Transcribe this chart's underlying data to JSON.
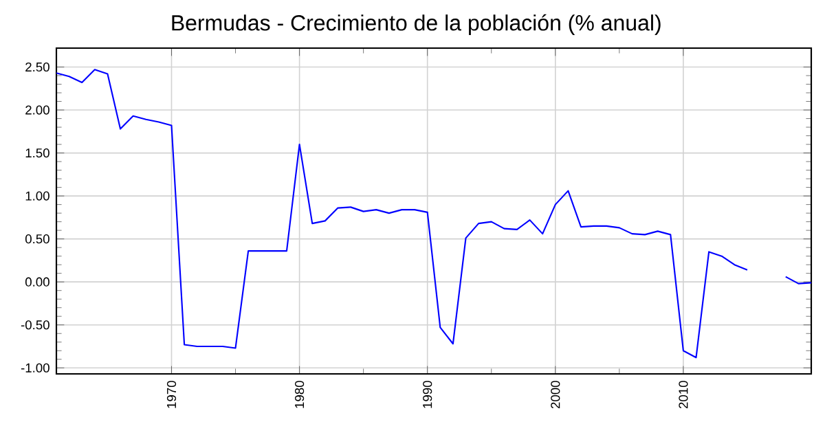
{
  "chart_data": {
    "type": "line",
    "title": "Bermudas - Crecimiento de la población (% anual)",
    "x": [
      1961,
      1962,
      1963,
      1964,
      1965,
      1966,
      1967,
      1968,
      1969,
      1970,
      1971,
      1972,
      1973,
      1974,
      1975,
      1976,
      1977,
      1978,
      1979,
      1980,
      1981,
      1982,
      1983,
      1984,
      1985,
      1986,
      1987,
      1988,
      1989,
      1990,
      1991,
      1992,
      1993,
      1994,
      1995,
      1996,
      1997,
      1998,
      1999,
      2000,
      2001,
      2002,
      2003,
      2004,
      2005,
      2006,
      2007,
      2008,
      2009,
      2010,
      2011,
      2012,
      2013,
      2014,
      2015,
      2016,
      2017,
      2018,
      2019,
      2020
    ],
    "series": [
      {
        "color": "#0000ff",
        "values": [
          2.43,
          2.39,
          2.32,
          2.47,
          2.42,
          1.78,
          1.93,
          1.89,
          1.86,
          1.82,
          -0.73,
          -0.75,
          -0.75,
          -0.75,
          -0.77,
          0.36,
          0.36,
          0.36,
          0.36,
          1.6,
          0.68,
          0.71,
          0.86,
          0.87,
          0.82,
          0.84,
          0.8,
          0.84,
          0.84,
          0.81,
          -0.53,
          -0.72,
          0.51,
          0.68,
          0.7,
          0.62,
          0.61,
          0.72,
          0.56,
          0.9,
          1.06,
          0.64,
          0.65,
          0.65,
          0.63,
          0.56,
          0.55,
          0.59,
          0.55,
          -0.8,
          -0.88,
          0.35,
          0.3,
          0.2,
          0.14,
          null,
          null,
          0.06,
          -0.02,
          -0.01
        ]
      }
    ],
    "xlim": [
      1961,
      2020
    ],
    "ylim": [
      -1.07,
      2.72
    ],
    "xticks": [
      1970,
      1980,
      1990,
      2000,
      2010
    ],
    "yticks": [
      {
        "value": -1,
        "label": "-1.00"
      },
      {
        "value": -0.5,
        "label": "-0.50"
      },
      {
        "value": 0,
        "label": "0.00"
      },
      {
        "value": 0.5,
        "label": "0.50"
      },
      {
        "value": 1,
        "label": "1.00"
      },
      {
        "value": 1.5,
        "label": "1.50"
      },
      {
        "value": 2,
        "label": "2.00"
      },
      {
        "value": 2.5,
        "label": "2.50"
      }
    ],
    "grid": true,
    "marker": "none",
    "line_style": "solid"
  }
}
